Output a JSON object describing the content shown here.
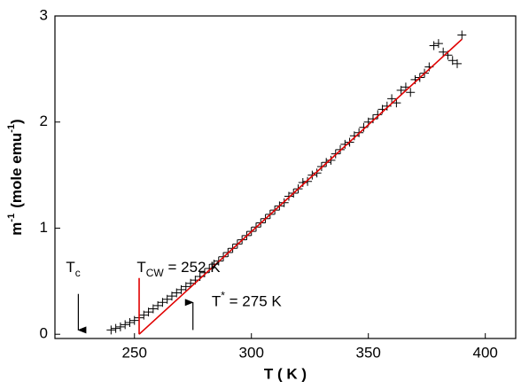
{
  "chart_data": {
    "type": "scatter",
    "xlabel": "T ( K )",
    "ylabel": [
      "m",
      "-1",
      "(mole emu",
      "-1",
      ")"
    ],
    "xlim": [
      216,
      413
    ],
    "xticks": [
      250,
      300,
      350,
      400
    ],
    "ylim": [
      -0.04,
      3
    ],
    "yticks": [
      0,
      1,
      2,
      3
    ],
    "series": [
      {
        "color": "#000000",
        "marker": "+",
        "x": [
          240,
          242,
          244,
          246,
          248,
          250,
          252,
          254,
          256,
          258,
          260,
          262,
          264,
          266,
          268,
          270,
          272,
          274,
          276,
          278,
          280,
          282,
          284,
          286,
          288,
          290,
          292,
          294,
          296,
          298,
          300,
          302,
          304,
          306,
          308,
          310,
          312,
          314,
          316,
          318,
          320,
          322,
          324,
          326,
          328,
          330,
          332,
          334,
          336,
          338,
          340,
          342,
          344,
          346,
          348,
          350,
          352,
          354,
          356,
          358,
          360,
          362,
          364,
          366,
          368,
          370,
          372,
          374,
          376,
          378,
          380,
          382,
          384,
          386,
          388,
          390
        ],
        "values": [
          0.04,
          0.055,
          0.07,
          0.09,
          0.11,
          0.13,
          0.155,
          0.18,
          0.21,
          0.24,
          0.27,
          0.3,
          0.33,
          0.36,
          0.39,
          0.42,
          0.45,
          0.48,
          0.51,
          0.545,
          0.58,
          0.62,
          0.66,
          0.69,
          0.73,
          0.77,
          0.81,
          0.85,
          0.89,
          0.93,
          0.97,
          1.01,
          1.05,
          1.09,
          1.13,
          1.17,
          1.21,
          1.24,
          1.3,
          1.33,
          1.37,
          1.43,
          1.44,
          1.5,
          1.52,
          1.58,
          1.62,
          1.64,
          1.7,
          1.74,
          1.79,
          1.81,
          1.87,
          1.9,
          1.95,
          2.0,
          2.03,
          2.07,
          2.12,
          2.15,
          2.22,
          2.18,
          2.3,
          2.33,
          2.28,
          2.4,
          2.42,
          2.46,
          2.52,
          2.72,
          2.74,
          2.66,
          2.63,
          2.58,
          2.55,
          2.82
        ]
      },
      {
        "color": "#e00000",
        "marker": "line",
        "x": [
          252,
          390
        ],
        "values": [
          0,
          2.78
        ]
      },
      {
        "color": "#e00000",
        "marker": "line",
        "x": [
          252,
          252
        ],
        "values": [
          0,
          0.53
        ]
      }
    ],
    "annotations": [
      {
        "text": "T",
        "sub": "c",
        "x": 226,
        "y": 0.62,
        "arrow": [
          0.38,
          0.04
        ]
      },
      {
        "text": "T",
        "sub": "CW",
        "rest": " = 252 K",
        "x": 251,
        "y": 0.62
      },
      {
        "text": "T",
        "sup": "*",
        "rest": " = 275 K",
        "x": 283,
        "y": 0.3,
        "arrow_x": 275,
        "arrow": [
          0.04,
          0.3
        ]
      }
    ]
  }
}
